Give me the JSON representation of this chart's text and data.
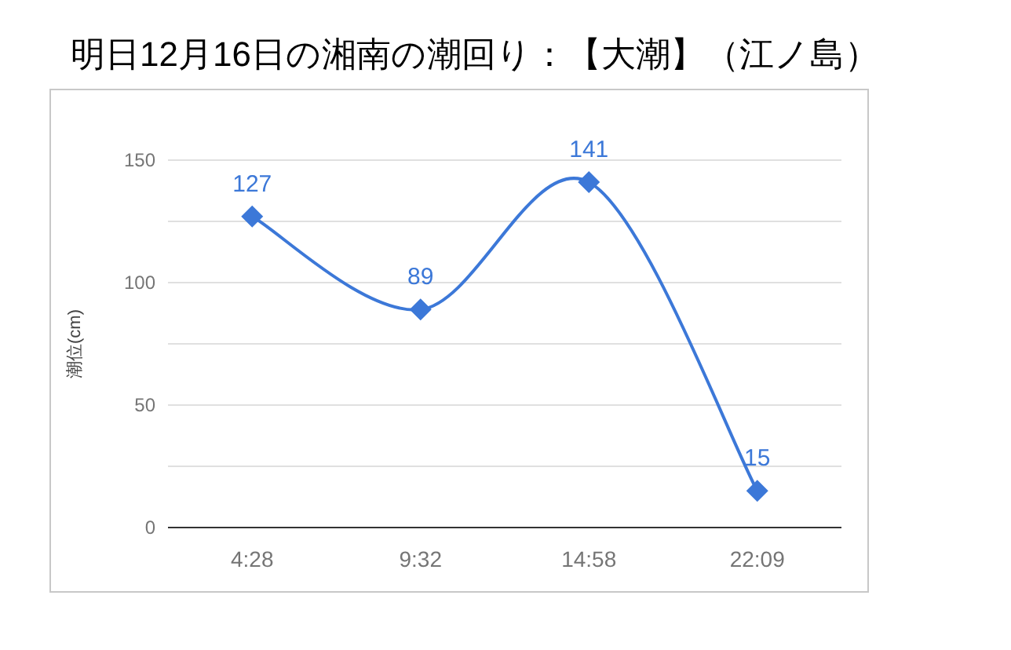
{
  "chart_data": {
    "type": "line",
    "title": "明日12月16日の湘南の潮回り：【大潮】（江ノ島）",
    "ylabel": "潮位(cm)",
    "categories": [
      "4:28",
      "9:32",
      "14:58",
      "22:09"
    ],
    "series": [
      {
        "color": "#3c78d8",
        "values": [
          127,
          89,
          141,
          15
        ]
      }
    ],
    "ylim": [
      0,
      150
    ],
    "yticks": [
      0,
      {
        "value": 25,
        "label": null
      },
      50,
      {
        "value": 75,
        "label": null
      },
      100,
      {
        "value": 125,
        "label": null
      },
      150
    ],
    "grid": "y",
    "marker": "diamond",
    "line_style": "solid",
    "data_labels": true
  }
}
